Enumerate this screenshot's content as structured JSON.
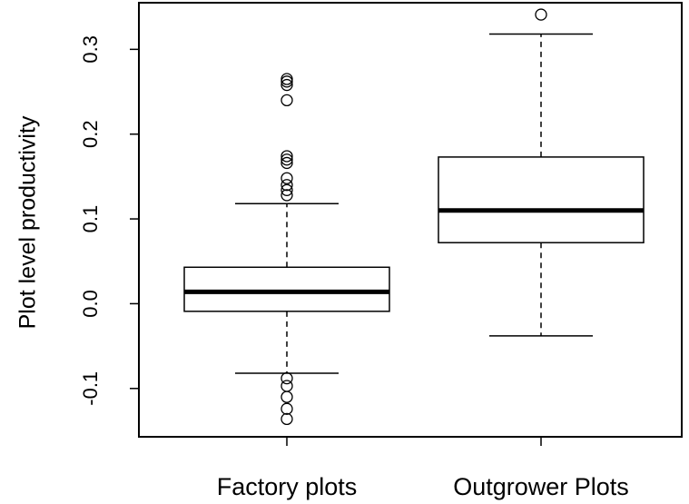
{
  "chart_data": {
    "type": "boxplot",
    "title": "",
    "xlabel": "",
    "ylabel": "Plot level productivity",
    "ylim": [
      -0.157,
      0.355
    ],
    "yticks": [
      -0.1,
      0.0,
      0.1,
      0.2,
      0.3
    ],
    "ytick_labels": [
      "-0.1",
      "0.0",
      "0.1",
      "0.2",
      "0.3"
    ],
    "grid": false,
    "categories": [
      "Factory plots",
      "Outgrower Plots"
    ],
    "boxes": [
      {
        "category": "Factory plots",
        "whisker_low": -0.082,
        "q1": -0.009,
        "median": 0.014,
        "q3": 0.043,
        "whisker_high": 0.118,
        "outliers": [
          0.265,
          0.262,
          0.258,
          0.24,
          0.174,
          0.17,
          0.166,
          0.148,
          0.14,
          0.134,
          0.128,
          -0.088,
          -0.097,
          -0.11,
          -0.124,
          -0.136
        ]
      },
      {
        "category": "Outgrower Plots",
        "whisker_low": -0.038,
        "q1": 0.072,
        "median": 0.11,
        "q3": 0.173,
        "whisker_high": 0.318,
        "outliers": [
          0.341
        ]
      }
    ]
  }
}
